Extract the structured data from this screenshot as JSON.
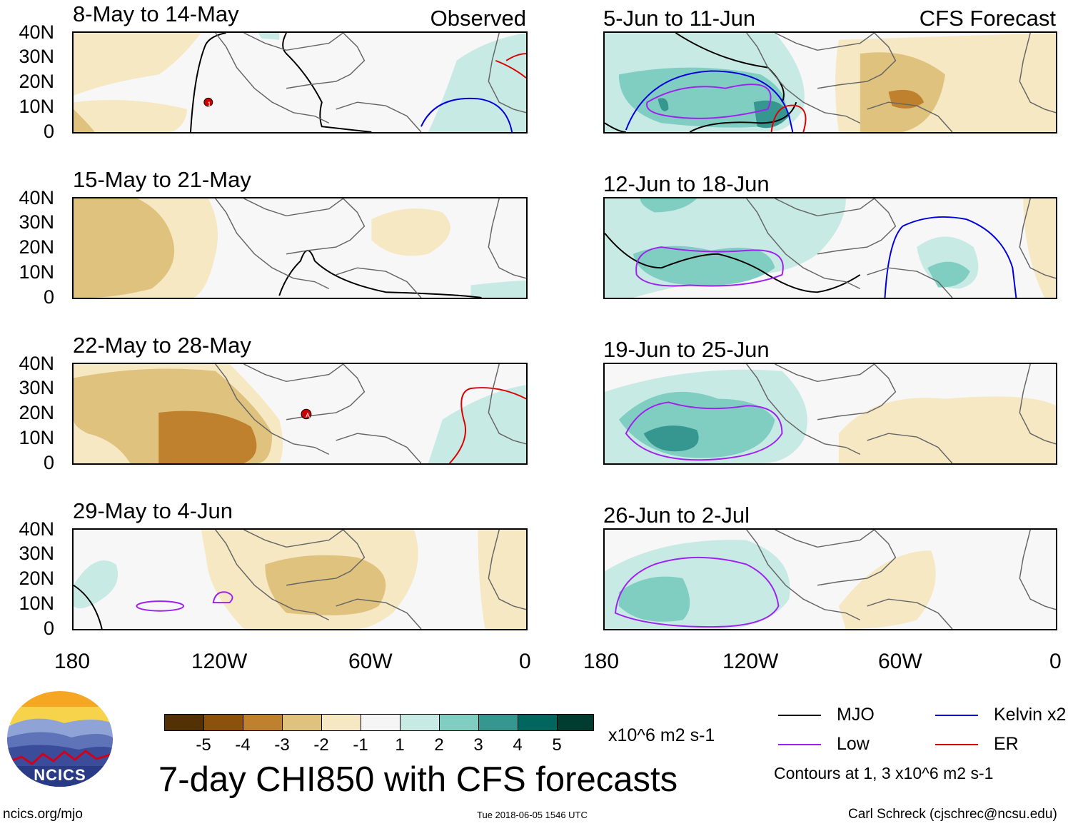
{
  "header": {
    "observed_label": "Observed",
    "forecast_label": "CFS Forecast"
  },
  "panels": {
    "p1": {
      "title": "8-May to 14-May"
    },
    "p2": {
      "title": "15-May to 21-May"
    },
    "p3": {
      "title": "22-May to 28-May"
    },
    "p4": {
      "title": "29-May to 4-Jun"
    },
    "p5": {
      "title": "5-Jun to 11-Jun"
    },
    "p6": {
      "title": "12-Jun to 18-Jun"
    },
    "p7": {
      "title": "19-Jun to 25-Jun"
    },
    "p8": {
      "title": "26-Jun to 2-Jul"
    }
  },
  "axes": {
    "lat_ticks": [
      "40N",
      "30N",
      "20N",
      "10N",
      "0"
    ],
    "lon_ticks": [
      "180",
      "120W",
      "60W",
      "0"
    ]
  },
  "storm_markers": {
    "m1": "1",
    "m2": "A"
  },
  "colorbar": {
    "labels": [
      "-5",
      "-4",
      "-3",
      "-2",
      "-1",
      "1",
      "2",
      "3",
      "4",
      "5"
    ],
    "colors": [
      "#543005",
      "#8c510a",
      "#bf812d",
      "#dfc27d",
      "#f6e8c3",
      "#f5f5f5",
      "#c7eae5",
      "#80cdc1",
      "#35978f",
      "#01665e",
      "#003c30"
    ],
    "units": "x10^6 m2 s-1"
  },
  "main_title": "7-day CHI850 with CFS forecasts",
  "legend": {
    "mjo": {
      "label": "MJO",
      "color": "#000000"
    },
    "kelvin": {
      "label": "Kelvin x2",
      "color": "#0000dd"
    },
    "low": {
      "label": "Low",
      "color": "#a020f0"
    },
    "er": {
      "label": "ER",
      "color": "#dd0000"
    },
    "note": "Contours at 1, 3 x10^6 m2 s-1"
  },
  "logo": {
    "text": "NCICS"
  },
  "footer": {
    "url": "ncics.org/mjo",
    "timestamp": "Tue 2018-06-05 1546 UTC",
    "author": "Carl Schreck (cjschrec@ncsu.edu)"
  }
}
